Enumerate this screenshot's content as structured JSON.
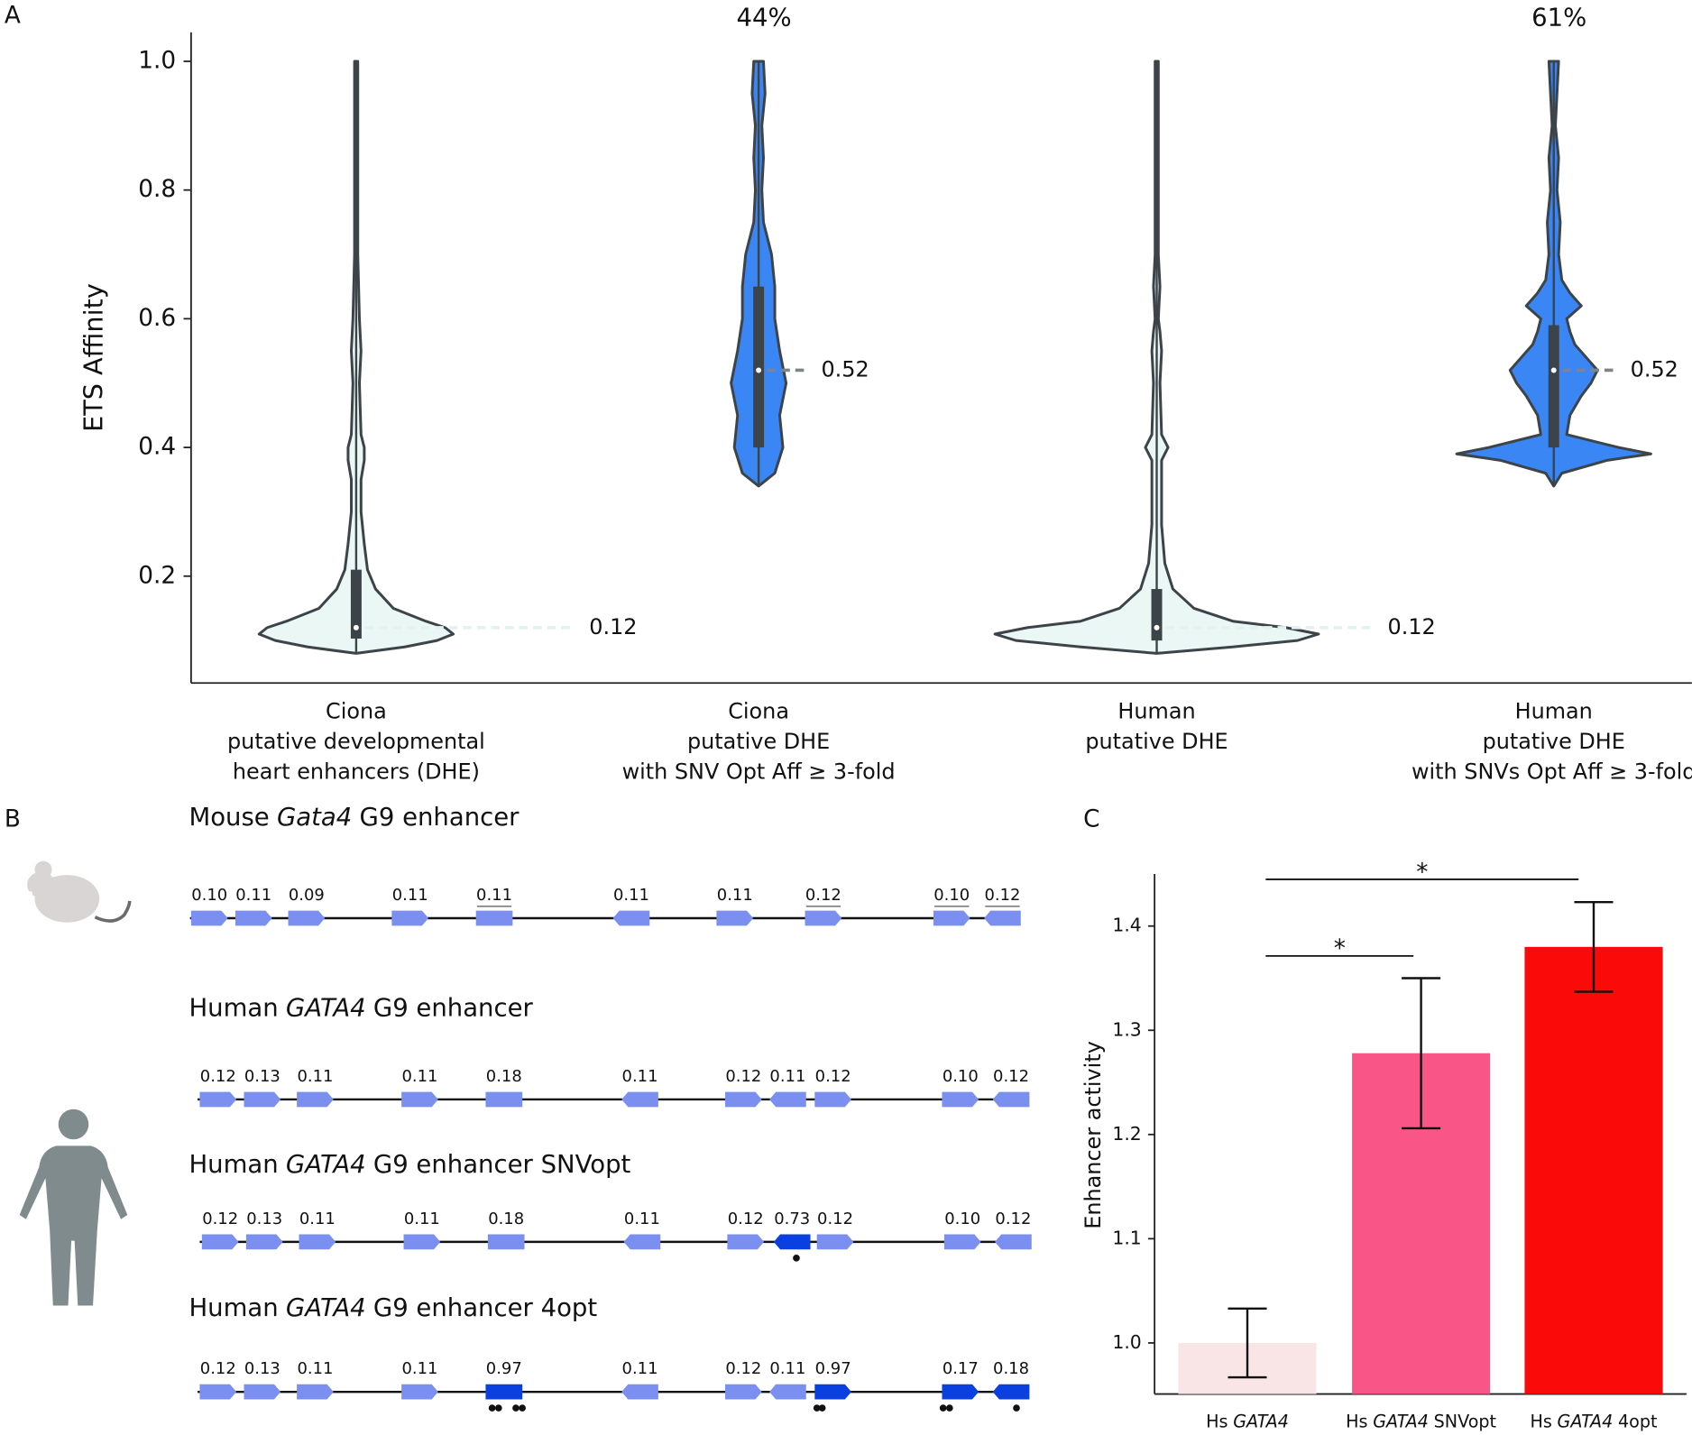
{
  "panel_labels": [
    "A",
    "B",
    "C"
  ],
  "chart_data": [
    {
      "type": "violin",
      "ylabel": "ETS Affinity",
      "ylim": [
        0.034,
        1.045
      ],
      "yticks": [
        0.2,
        0.4,
        0.6,
        0.8,
        {
          "value": 1,
          "label": "1.0"
        }
      ],
      "categories": [
        [
          "Ciona",
          "putative developmental",
          "heart enhancers (DHE)"
        ],
        [
          "Ciona",
          "putative DHE",
          "with SNV Opt Aff  ≥ 3-fold"
        ],
        [
          "Human",
          "putative DHE"
        ],
        [
          "Human",
          "putative DHE",
          "with SNVs Opt Aff ≥ 3-fold"
        ]
      ],
      "violins": [
        {
          "color": "#eaf7f4",
          "median": 0.12,
          "q1": 0.103,
          "q3": 0.21,
          "min": 0.08,
          "max": 1.0,
          "density_y": [
            0.08,
            0.09,
            0.1,
            0.11,
            0.12,
            0.13,
            0.15,
            0.18,
            0.21,
            0.25,
            0.3,
            0.35,
            0.38,
            0.4,
            0.42,
            0.5,
            0.55,
            0.6,
            0.7,
            0.8,
            1.0
          ],
          "density_w": [
            0,
            0.3,
            0.5,
            0.6,
            0.55,
            0.43,
            0.23,
            0.12,
            0.07,
            0.05,
            0.03,
            0.03,
            0.05,
            0.05,
            0.03,
            0.02,
            0.03,
            0.02,
            0.01,
            0.01,
            0.01
          ]
        },
        {
          "color": "#3a86f5",
          "median": 0.52,
          "q1": 0.4,
          "q3": 0.65,
          "min": 0.34,
          "max": 1.0,
          "annotation": "44%",
          "density_y": [
            0.34,
            0.36,
            0.4,
            0.45,
            0.5,
            0.55,
            0.6,
            0.65,
            0.7,
            0.75,
            0.8,
            0.85,
            0.9,
            0.95,
            1.0
          ],
          "density_w": [
            0,
            0.1,
            0.15,
            0.13,
            0.17,
            0.13,
            0.1,
            0.1,
            0.08,
            0.03,
            0.02,
            0.03,
            0.02,
            0.04,
            0.03
          ]
        },
        {
          "color": "#eaf7f4",
          "median": 0.12,
          "q1": 0.1,
          "q3": 0.18,
          "min": 0.08,
          "max": 1.0,
          "density_y": [
            0.08,
            0.09,
            0.1,
            0.11,
            0.12,
            0.13,
            0.15,
            0.18,
            0.22,
            0.28,
            0.32,
            0.38,
            0.4,
            0.42,
            0.5,
            0.55,
            0.58,
            0.6,
            0.65,
            0.7,
            1.0
          ],
          "density_w": [
            0,
            0.47,
            0.87,
            1,
            0.8,
            0.47,
            0.23,
            0.1,
            0.05,
            0.03,
            0.03,
            0.03,
            0.07,
            0.03,
            0.02,
            0.03,
            0.02,
            0.01,
            0.02,
            0.01,
            0.01
          ]
        },
        {
          "color": "#3a86f5",
          "median": 0.52,
          "q1": 0.4,
          "q3": 0.59,
          "min": 0.34,
          "max": 1.0,
          "annotation": "61%",
          "density_y": [
            0.34,
            0.36,
            0.38,
            0.39,
            0.4,
            0.42,
            0.45,
            0.48,
            0.5,
            0.52,
            0.54,
            0.56,
            0.58,
            0.6,
            0.62,
            0.64,
            0.66,
            0.7,
            0.75,
            0.8,
            0.85,
            0.9,
            0.95,
            1.0
          ],
          "density_w": [
            0,
            0.05,
            0.33,
            0.6,
            0.4,
            0.08,
            0.1,
            0.17,
            0.23,
            0.27,
            0.2,
            0.13,
            0.1,
            0.08,
            0.17,
            0.1,
            0.05,
            0.03,
            0.04,
            0.02,
            0.03,
            0.01,
            0.02,
            0.03
          ]
        }
      ]
    },
    {
      "type": "bar",
      "ylabel": "Enhancer activity",
      "ylim": [
        0.951,
        1.45
      ],
      "yticks": [
        {
          "value": 1,
          "label": "1.0"
        },
        1.1,
        1.2,
        1.3,
        1.4
      ],
      "categories": [
        [
          "Hs",
          "GATA4"
        ],
        [
          "Hs",
          "GATA4",
          "SNVopt"
        ],
        [
          "Hs",
          "GATA4",
          "4opt"
        ]
      ],
      "values": [
        1.0,
        1.278,
        1.38
      ],
      "errors": [
        0.033,
        0.072,
        0.043
      ],
      "colors": [
        "#f9e4e6",
        "#f95587",
        "#fb0a0a"
      ],
      "significance": [
        {
          "pair": [
            0,
            1
          ],
          "label": "*"
        },
        {
          "pair": [
            0,
            2
          ],
          "label": "*"
        }
      ]
    }
  ],
  "diagram": {
    "tracks": [
      {
        "title": [
          "Mouse",
          "Gata4",
          "G9 enhancer"
        ],
        "sites": [
          "0.10",
          "0.11",
          "0.09",
          "0.11",
          "0.11",
          "0.11",
          "0.11",
          "0.12",
          "0.10",
          "0.12"
        ]
      },
      {
        "title": [
          "Human",
          "GATA4",
          "G9 enhancer"
        ],
        "sites": [
          "0.12",
          "0.13",
          "0.11",
          "0.11",
          "0.18",
          "0.11",
          "0.12",
          "0.11",
          "0.12",
          "0.10",
          "0.12"
        ]
      },
      {
        "title": [
          "Human",
          "GATA4",
          "G9 enhancer SNVopt"
        ],
        "sites": [
          "0.12",
          "0.13",
          "0.11",
          "0.11",
          "0.18",
          "0.11",
          "0.12",
          "0.73",
          "0.12",
          "0.10",
          "0.12"
        ]
      },
      {
        "title": [
          "Human",
          "GATA4",
          "G9 enhancer 4opt"
        ],
        "sites": [
          "0.12",
          "0.13",
          "0.11",
          "0.11",
          "0.97",
          "0.11",
          "0.12",
          "0.11",
          "0.97",
          "0.17",
          "0.18"
        ]
      }
    ]
  }
}
